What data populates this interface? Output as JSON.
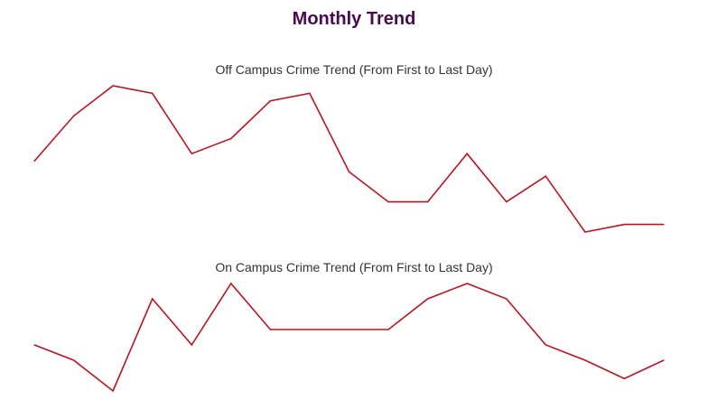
{
  "page": {
    "title": "Monthly Trend"
  },
  "colors": {
    "title": "#4a0a4f",
    "line": "#c0111f",
    "text": "#333333"
  },
  "chart_data": [
    {
      "type": "line",
      "title": "Off Campus Crime Trend (From First to Last Day)",
      "xlabel": "",
      "ylabel": "",
      "grid": false,
      "x": [
        1,
        2,
        3,
        4,
        5,
        6,
        7,
        8,
        9,
        10,
        11,
        12,
        13,
        14,
        15,
        16,
        17
      ],
      "series": [
        {
          "values": [
            10,
            13,
            15,
            14.5,
            10.5,
            11.5,
            14,
            14.5,
            9.3,
            7.3,
            7.3,
            10.5,
            7.3,
            9,
            5.3,
            5.8,
            5.8
          ]
        }
      ]
    },
    {
      "type": "line",
      "title": "On Campus Crime Trend (From First to Last Day)",
      "xlabel": "",
      "ylabel": "",
      "grid": false,
      "x": [
        1,
        2,
        3,
        4,
        5,
        6,
        7,
        8,
        9,
        10,
        11,
        12,
        13,
        14,
        15,
        16,
        17
      ],
      "series": [
        {
          "values": [
            4,
            3,
            1,
            7,
            4,
            8,
            5,
            5,
            5,
            5,
            7,
            8,
            7,
            4,
            3,
            1.8,
            3
          ]
        }
      ]
    }
  ]
}
